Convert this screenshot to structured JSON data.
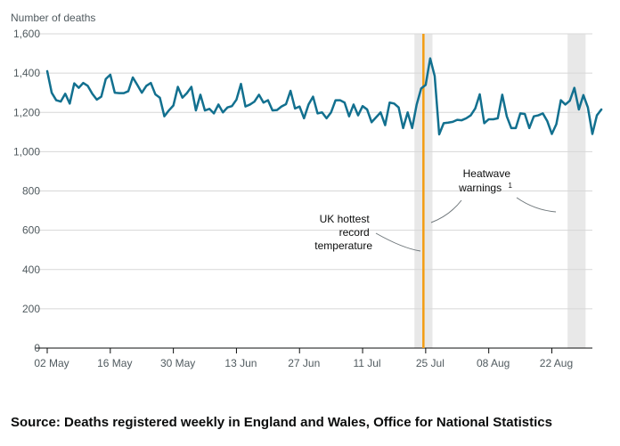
{
  "chart_data": {
    "type": "line",
    "ylabel": "Number of deaths",
    "ylim": [
      0,
      1600
    ],
    "yticks": [
      0,
      200,
      400,
      600,
      800,
      1000,
      1200,
      1400,
      1600
    ],
    "ytick_labels": [
      "0",
      "200",
      "400",
      "600",
      "800",
      "1,000",
      "1,200",
      "1,400",
      "1,600"
    ],
    "x_start_day": 0,
    "x_end_day": 121,
    "xticks": [
      {
        "day": 0,
        "label": "02 May"
      },
      {
        "day": 14,
        "label": "16 May"
      },
      {
        "day": 28,
        "label": "30 May"
      },
      {
        "day": 42,
        "label": "13 Jun"
      },
      {
        "day": 56,
        "label": "27 Jun"
      },
      {
        "day": 70,
        "label": "11 Jul"
      },
      {
        "day": 84,
        "label": "25 Jul"
      },
      {
        "day": 98,
        "label": "08 Aug"
      },
      {
        "day": 112,
        "label": "22 Aug"
      }
    ],
    "series": [
      {
        "name": "Number of deaths",
        "color": "#12708f",
        "values": [
          1410,
          1300,
          1262,
          1255,
          1295,
          1245,
          1348,
          1325,
          1350,
          1335,
          1295,
          1265,
          1280,
          1370,
          1392,
          1300,
          1298,
          1298,
          1308,
          1378,
          1340,
          1300,
          1335,
          1350,
          1292,
          1275,
          1180,
          1210,
          1235,
          1330,
          1275,
          1298,
          1330,
          1210,
          1290,
          1210,
          1218,
          1195,
          1240,
          1200,
          1225,
          1232,
          1265,
          1345,
          1230,
          1240,
          1255,
          1290,
          1250,
          1262,
          1210,
          1212,
          1230,
          1242,
          1310,
          1220,
          1230,
          1170,
          1240,
          1280,
          1195,
          1200,
          1170,
          1200,
          1262,
          1262,
          1250,
          1180,
          1240,
          1185,
          1232,
          1215,
          1150,
          1175,
          1200,
          1135,
          1250,
          1245,
          1225,
          1120,
          1200,
          1120,
          1240,
          1322,
          1340,
          1475,
          1385,
          1088,
          1145,
          1148,
          1152,
          1162,
          1160,
          1170,
          1185,
          1220,
          1292,
          1145,
          1165,
          1165,
          1170,
          1290,
          1180,
          1120,
          1120,
          1195,
          1192,
          1120,
          1180,
          1185,
          1195,
          1155,
          1090,
          1140,
          1262,
          1240,
          1260,
          1325,
          1215,
          1288,
          1225,
          1090,
          1185,
          1215
        ]
      }
    ],
    "reference_line": {
      "day": 83.5,
      "color": "#f39c12",
      "label": [
        "UK hottest",
        "record",
        "temperature"
      ]
    },
    "shaded_periods": [
      {
        "start_day": 81.5,
        "end_day": 85.5
      },
      {
        "start_day": 115.5,
        "end_day": 119.5
      }
    ],
    "annotation": {
      "label": [
        "Heatwave",
        "warnings"
      ],
      "superscript": "1"
    },
    "shade_color": "#e8e8e8"
  },
  "source": "Source: Deaths registered weekly in England and Wales, Office for National Statistics"
}
